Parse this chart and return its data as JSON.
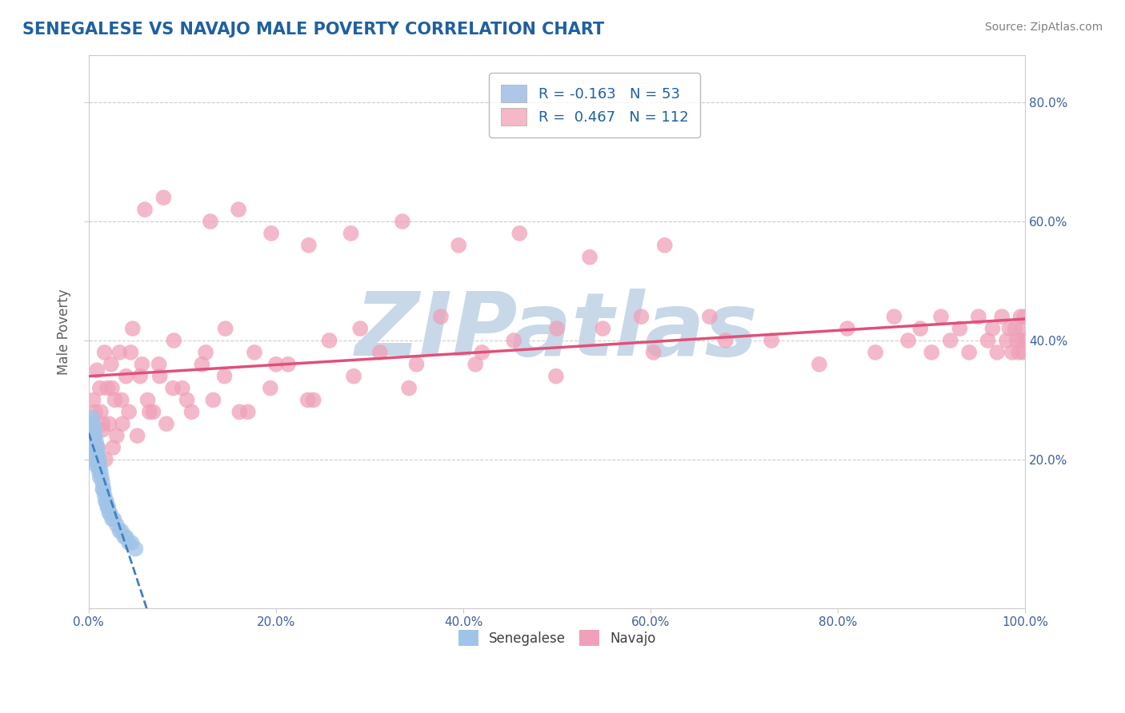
{
  "title": "SENEGALESE VS NAVAJO MALE POVERTY CORRELATION CHART",
  "source": "Source: ZipAtlas.com",
  "ylabel": "Male Poverty",
  "xlim": [
    0.0,
    1.0
  ],
  "ylim": [
    -0.05,
    0.88
  ],
  "xticks": [
    0.0,
    0.2,
    0.4,
    0.6,
    0.8,
    1.0
  ],
  "yticks": [
    0.2,
    0.4,
    0.6,
    0.8
  ],
  "xtick_labels": [
    "0.0%",
    "20.0%",
    "40.0%",
    "60.0%",
    "80.0%",
    "100.0%"
  ],
  "ytick_labels_right": [
    "20.0%",
    "40.0%",
    "60.0%",
    "80.0%"
  ],
  "legend_entries": [
    {
      "label": "R = -0.163   N = 53",
      "color": "#aec6e8"
    },
    {
      "label": "R =  0.467   N = 112",
      "color": "#f4b8c8"
    }
  ],
  "senegalese_color": "#a0c4e8",
  "senegalese_edge": "#5090c0",
  "navajo_color": "#f0a0b8",
  "navajo_edge": "#d06070",
  "navajo_line_color": "#e0507a",
  "senegalese_line_color": "#4080c0",
  "watermark_text": "ZIPatlas",
  "watermark_color": "#c8d8e8",
  "background_color": "#ffffff",
  "grid_color": "#cccccc",
  "title_color": "#2060a0",
  "source_color": "#808080",
  "axis_label_color": "#606060",
  "tick_color": "#4060a0",
  "senegalese_x": [
    0.001,
    0.002,
    0.002,
    0.003,
    0.003,
    0.003,
    0.004,
    0.004,
    0.004,
    0.004,
    0.005,
    0.005,
    0.005,
    0.005,
    0.006,
    0.006,
    0.006,
    0.007,
    0.007,
    0.007,
    0.008,
    0.008,
    0.008,
    0.009,
    0.009,
    0.01,
    0.01,
    0.011,
    0.011,
    0.012,
    0.012,
    0.013,
    0.014,
    0.015,
    0.015,
    0.016,
    0.017,
    0.018,
    0.019,
    0.02,
    0.021,
    0.022,
    0.023,
    0.025,
    0.027,
    0.03,
    0.033,
    0.035,
    0.038,
    0.04,
    0.043,
    0.046,
    0.05
  ],
  "senegalese_y": [
    0.26,
    0.24,
    0.22,
    0.25,
    0.23,
    0.21,
    0.27,
    0.25,
    0.23,
    0.22,
    0.26,
    0.24,
    0.22,
    0.2,
    0.25,
    0.23,
    0.21,
    0.24,
    0.22,
    0.2,
    0.23,
    0.21,
    0.19,
    0.22,
    0.2,
    0.21,
    0.19,
    0.2,
    0.18,
    0.19,
    0.17,
    0.18,
    0.17,
    0.16,
    0.15,
    0.15,
    0.14,
    0.13,
    0.13,
    0.12,
    0.12,
    0.11,
    0.11,
    0.1,
    0.1,
    0.09,
    0.08,
    0.08,
    0.07,
    0.07,
    0.06,
    0.06,
    0.05
  ],
  "navajo_x": [
    0.002,
    0.004,
    0.005,
    0.007,
    0.008,
    0.009,
    0.01,
    0.012,
    0.013,
    0.015,
    0.017,
    0.018,
    0.02,
    0.022,
    0.024,
    0.026,
    0.028,
    0.03,
    0.033,
    0.036,
    0.04,
    0.043,
    0.047,
    0.052,
    0.057,
    0.063,
    0.069,
    0.076,
    0.083,
    0.091,
    0.1,
    0.11,
    0.121,
    0.133,
    0.146,
    0.161,
    0.177,
    0.194,
    0.213,
    0.234,
    0.257,
    0.283,
    0.311,
    0.342,
    0.376,
    0.413,
    0.454,
    0.499,
    0.549,
    0.603,
    0.663,
    0.729,
    0.78,
    0.81,
    0.84,
    0.86,
    0.875,
    0.888,
    0.9,
    0.91,
    0.92,
    0.93,
    0.94,
    0.95,
    0.96,
    0.965,
    0.97,
    0.975,
    0.98,
    0.983,
    0.986,
    0.989,
    0.991,
    0.993,
    0.995,
    0.996,
    0.997,
    0.998,
    0.999,
    1.0,
    0.015,
    0.025,
    0.035,
    0.045,
    0.055,
    0.065,
    0.075,
    0.09,
    0.105,
    0.125,
    0.145,
    0.17,
    0.2,
    0.24,
    0.29,
    0.35,
    0.42,
    0.5,
    0.59,
    0.68,
    0.06,
    0.08,
    0.13,
    0.16,
    0.195,
    0.235,
    0.28,
    0.335,
    0.395,
    0.46,
    0.535,
    0.615
  ],
  "navajo_y": [
    0.22,
    0.25,
    0.3,
    0.28,
    0.2,
    0.35,
    0.22,
    0.32,
    0.28,
    0.25,
    0.38,
    0.2,
    0.32,
    0.26,
    0.36,
    0.22,
    0.3,
    0.24,
    0.38,
    0.26,
    0.34,
    0.28,
    0.42,
    0.24,
    0.36,
    0.3,
    0.28,
    0.34,
    0.26,
    0.4,
    0.32,
    0.28,
    0.36,
    0.3,
    0.42,
    0.28,
    0.38,
    0.32,
    0.36,
    0.3,
    0.4,
    0.34,
    0.38,
    0.32,
    0.44,
    0.36,
    0.4,
    0.34,
    0.42,
    0.38,
    0.44,
    0.4,
    0.36,
    0.42,
    0.38,
    0.44,
    0.4,
    0.42,
    0.38,
    0.44,
    0.4,
    0.42,
    0.38,
    0.44,
    0.4,
    0.42,
    0.38,
    0.44,
    0.4,
    0.42,
    0.38,
    0.42,
    0.4,
    0.38,
    0.44,
    0.4,
    0.42,
    0.38,
    0.44,
    0.4,
    0.26,
    0.32,
    0.3,
    0.38,
    0.34,
    0.28,
    0.36,
    0.32,
    0.3,
    0.38,
    0.34,
    0.28,
    0.36,
    0.3,
    0.42,
    0.36,
    0.38,
    0.42,
    0.44,
    0.4,
    0.62,
    0.64,
    0.6,
    0.62,
    0.58,
    0.56,
    0.58,
    0.6,
    0.56,
    0.58,
    0.54,
    0.56
  ]
}
